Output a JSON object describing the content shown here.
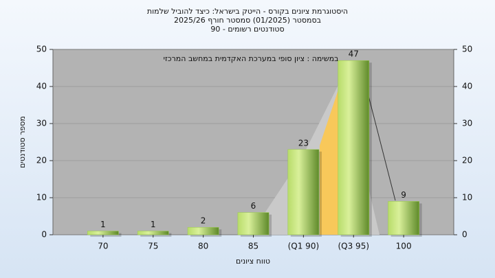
{
  "chart_data": {
    "type": "bar",
    "title": [
      "היסטוגרמת ציונים בקורס - הייטק בישראל: כיצד להוביל שלמות",
      "בסמסטר (01/2025) סמסטר חורף 2025/26",
      "סטודנטים רשומים - 90"
    ],
    "annotation": "במשימה : ציון סופי במערכת האקדמית במחשב המרכזי",
    "xlabel": "טווח ציונים",
    "ylabel": "מספר סטודנטים",
    "categories": [
      "70",
      "75",
      "80",
      "85",
      "(Q1 90)",
      "(Q3 95)",
      "100"
    ],
    "values": [
      1,
      1,
      2,
      6,
      23,
      47,
      9
    ],
    "color": "#9acd48",
    "ylim": [
      0,
      50
    ],
    "yticks": [
      0,
      10,
      20,
      30,
      40,
      50
    ],
    "y2lim": [
      0,
      50
    ],
    "y2ticks": [
      0,
      10,
      20,
      30,
      40,
      50
    ],
    "grid": true
  }
}
